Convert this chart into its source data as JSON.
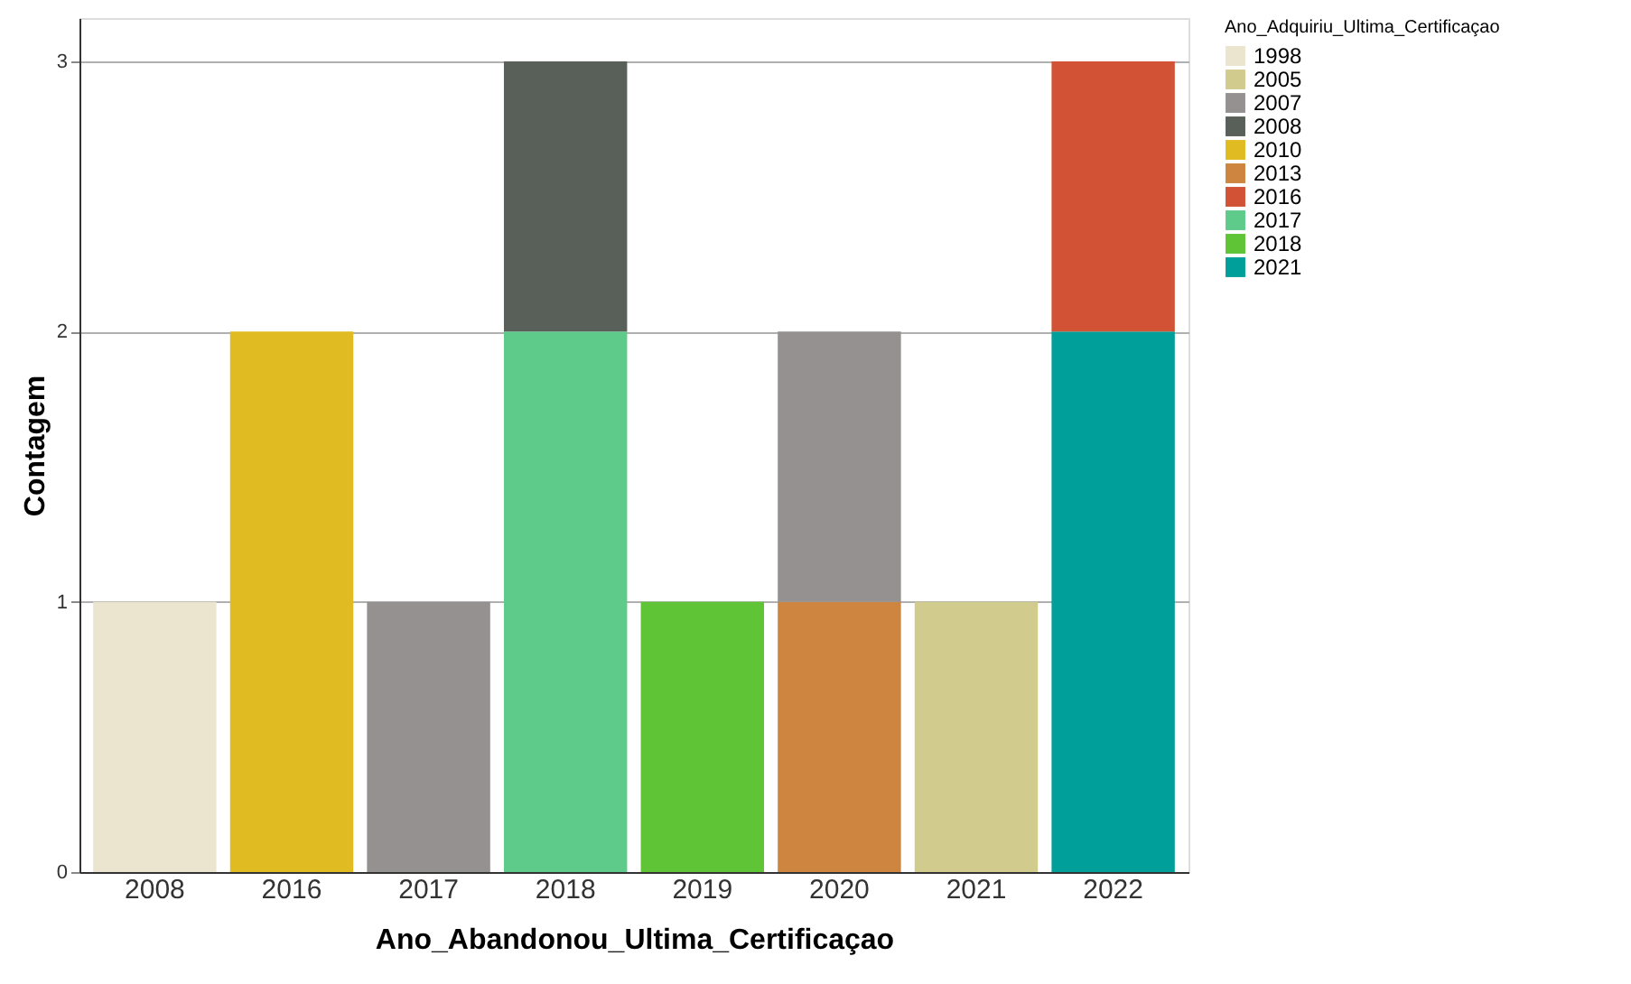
{
  "chart_data": {
    "type": "bar",
    "stacked": true,
    "xlabel": "Ano_Abandonou_Ultima_Certificaçao",
    "ylabel": "Contagem",
    "legend_title": "Ano_Adquiriu_Ultima_Certificaçao",
    "legend": "top right",
    "grid": "y",
    "categories": [
      "2008",
      "2016",
      "2017",
      "2018",
      "2019",
      "2020",
      "2021",
      "2022"
    ],
    "ylim": [
      0,
      3.16
    ],
    "yticks": [
      0,
      1,
      2,
      3
    ],
    "series": [
      {
        "name": "2021",
        "color": "#009f99",
        "values": [
          null,
          null,
          null,
          null,
          null,
          null,
          null,
          2
        ]
      },
      {
        "name": "2018",
        "color": "#60c437",
        "values": [
          null,
          null,
          null,
          null,
          1,
          null,
          null,
          null
        ]
      },
      {
        "name": "2017",
        "color": "#5ecb8b",
        "values": [
          null,
          null,
          null,
          2,
          null,
          null,
          null,
          null
        ]
      },
      {
        "name": "2016",
        "color": "#d15234",
        "values": [
          null,
          null,
          null,
          null,
          null,
          null,
          null,
          1
        ]
      },
      {
        "name": "2013",
        "color": "#cd853f",
        "values": [
          null,
          null,
          null,
          null,
          null,
          1,
          null,
          null
        ]
      },
      {
        "name": "2010",
        "color": "#e1bb22",
        "values": [
          null,
          2,
          null,
          null,
          null,
          null,
          null,
          null
        ]
      },
      {
        "name": "2008",
        "color": "#596059",
        "values": [
          null,
          null,
          null,
          1,
          null,
          null,
          null,
          null
        ]
      },
      {
        "name": "2007",
        "color": "#959190",
        "values": [
          null,
          null,
          1,
          null,
          null,
          1,
          null,
          null
        ]
      },
      {
        "name": "2005",
        "color": "#d2cb8e",
        "values": [
          null,
          null,
          null,
          null,
          null,
          null,
          1,
          null
        ]
      },
      {
        "name": "1998",
        "color": "#ebe5d0",
        "values": [
          1,
          null,
          null,
          null,
          null,
          null,
          null,
          null
        ]
      }
    ]
  }
}
